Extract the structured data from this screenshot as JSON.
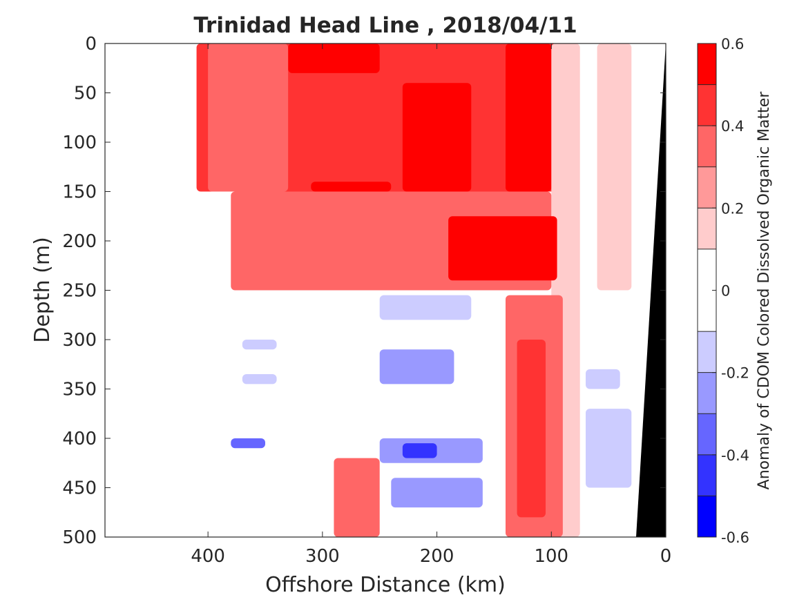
{
  "chart_data": {
    "type": "heatmap",
    "title": "Trinidad Head Line , 2018/04/11",
    "xlabel": "Offshore Distance (km)",
    "ylabel": "Depth (m)",
    "xlim": [
      490,
      0
    ],
    "ylim": [
      0,
      500
    ],
    "x_reversed": true,
    "y_reversed": true,
    "xticks": [
      400,
      300,
      200,
      100,
      0
    ],
    "yticks": [
      0,
      50,
      100,
      150,
      200,
      250,
      300,
      350,
      400,
      450,
      500
    ],
    "colorbar": {
      "label": "Anomaly of CDOM Colored Dissolved Organic Matter",
      "clim": [
        -0.6,
        0.6
      ],
      "ticks": [
        0.6,
        0.4,
        0.2,
        0,
        -0.2,
        -0.4,
        -0.6
      ],
      "tick_labels": [
        "0.6",
        "0.4",
        "0.2",
        "0",
        "-0.2",
        "-0.4",
        "-0.6"
      ],
      "levels": [
        -0.6,
        -0.5,
        -0.4,
        -0.3,
        -0.2,
        -0.1,
        0.1,
        0.2,
        0.3,
        0.4,
        0.5,
        0.6
      ],
      "colors": [
        "#0000ff",
        "#3333ff",
        "#6666ff",
        "#9999ff",
        "#ccccff",
        "#ffffff",
        "#ffcccc",
        "#ff9999",
        "#ff6666",
        "#ff3333",
        "#ff0000"
      ]
    },
    "bathymetry_color": "#000000",
    "grid": false,
    "regions": [
      {
        "x": [
          410,
          90
        ],
        "y": [
          0,
          150
        ],
        "value": 0.45
      },
      {
        "x": [
          330,
          250
        ],
        "y": [
          0,
          30
        ],
        "value": 0.55
      },
      {
        "x": [
          230,
          170
        ],
        "y": [
          40,
          150
        ],
        "value": 0.55
      },
      {
        "x": [
          140,
          100
        ],
        "y": [
          0,
          150
        ],
        "value": 0.55
      },
      {
        "x": [
          310,
          240
        ],
        "y": [
          140,
          150
        ],
        "value": 0.55
      },
      {
        "x": [
          400,
          330
        ],
        "y": [
          0,
          150
        ],
        "value": 0.35
      },
      {
        "x": [
          100,
          75
        ],
        "y": [
          0,
          500
        ],
        "value": 0.15
      },
      {
        "x": [
          60,
          30
        ],
        "y": [
          0,
          250
        ],
        "value": 0.15
      },
      {
        "x": [
          380,
          100
        ],
        "y": [
          150,
          250
        ],
        "value": 0.3
      },
      {
        "x": [
          190,
          95
        ],
        "y": [
          175,
          240
        ],
        "value": 0.5
      },
      {
        "x": [
          140,
          90
        ],
        "y": [
          255,
          500
        ],
        "value": 0.35
      },
      {
        "x": [
          130,
          105
        ],
        "y": [
          300,
          480
        ],
        "value": 0.45
      },
      {
        "x": [
          290,
          250
        ],
        "y": [
          420,
          500
        ],
        "value": 0.3
      },
      {
        "x": [
          250,
          170
        ],
        "y": [
          255,
          280
        ],
        "value": -0.15
      },
      {
        "x": [
          250,
          185
        ],
        "y": [
          310,
          345
        ],
        "value": -0.3
      },
      {
        "x": [
          250,
          160
        ],
        "y": [
          400,
          425
        ],
        "value": -0.3
      },
      {
        "x": [
          230,
          200
        ],
        "y": [
          405,
          420
        ],
        "value": -0.5
      },
      {
        "x": [
          240,
          160
        ],
        "y": [
          440,
          470
        ],
        "value": -0.25
      },
      {
        "x": [
          370,
          340
        ],
        "y": [
          300,
          310
        ],
        "value": -0.15
      },
      {
        "x": [
          370,
          340
        ],
        "y": [
          335,
          345
        ],
        "value": -0.15
      },
      {
        "x": [
          380,
          350
        ],
        "y": [
          400,
          410
        ],
        "value": -0.35
      },
      {
        "x": [
          70,
          30
        ],
        "y": [
          370,
          450
        ],
        "value": -0.15
      },
      {
        "x": [
          70,
          40
        ],
        "y": [
          330,
          350
        ],
        "value": -0.15
      }
    ]
  }
}
